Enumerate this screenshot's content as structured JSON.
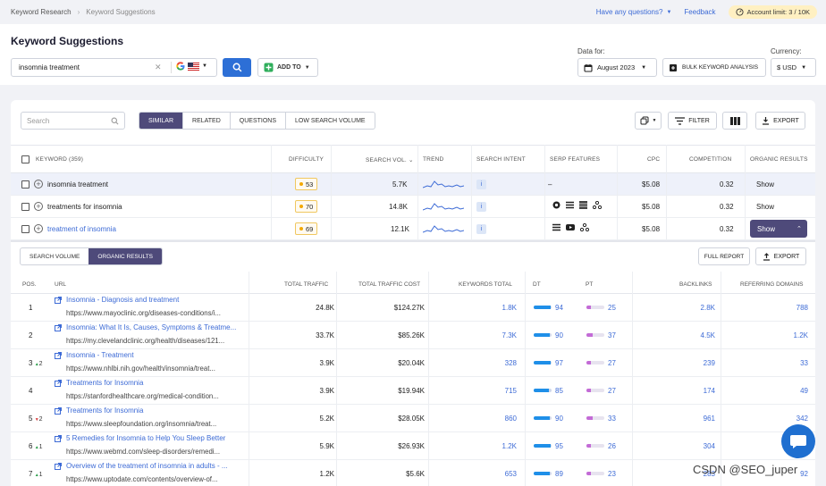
{
  "breadcrumb": {
    "root": "Keyword Research",
    "current": "Keyword Suggestions"
  },
  "topbar": {
    "questions": "Have any questions?",
    "feedback": "Feedback",
    "limit": "Account limit: 3 / 10K"
  },
  "page": {
    "title": "Keyword Suggestions"
  },
  "search": {
    "query": "insomnia treatment",
    "add_to": "ADD TO"
  },
  "data_for": {
    "label": "Data for:",
    "month": "August 2023",
    "bulk": "BULK KEYWORD ANALYSIS"
  },
  "currency": {
    "label": "Currency:",
    "value": "$ USD"
  },
  "filters": {
    "search_placeholder": "Search",
    "tabs": [
      "SIMILAR",
      "RELATED",
      "QUESTIONS",
      "LOW SEARCH VOLUME"
    ],
    "filter": "FILTER",
    "export": "EXPORT"
  },
  "kw_headers": {
    "keyword": "KEYWORD (359)",
    "difficulty": "DIFFICULTY",
    "volume": "SEARCH VOL.",
    "trend": "TREND",
    "intent": "SEARCH INTENT",
    "serp": "SERP FEATURES",
    "cpc": "CPC",
    "competition": "COMPETITION",
    "organic": "ORGANIC RESULTS"
  },
  "keywords": [
    {
      "keyword": "insomnia treatment",
      "difficulty": "53",
      "volume": "5.7K",
      "intent": "i",
      "serp": "–",
      "cpc": "$5.08",
      "competition": "0.32",
      "organic": "Show"
    },
    {
      "keyword": "treatments for insomnia",
      "difficulty": "70",
      "volume": "14.8K",
      "intent": "i",
      "serp": "",
      "cpc": "$5.08",
      "competition": "0.32",
      "organic": "Show"
    },
    {
      "keyword": "treatment of insomnia",
      "difficulty": "69",
      "volume": "12.1K",
      "intent": "i",
      "serp": "",
      "cpc": "$5.08",
      "competition": "0.32",
      "organic": "Show"
    }
  ],
  "sub_tabs": [
    "SEARCH VOLUME",
    "ORGANIC RESULTS"
  ],
  "full_report": "FULL REPORT",
  "sub_export": "EXPORT",
  "org_headers": {
    "pos": "POS.",
    "url": "URL",
    "traffic": "TOTAL TRAFFIC",
    "cost": "TOTAL TRAFFIC COST",
    "kw": "KEYWORDS TOTAL",
    "dt": "DT",
    "pt": "PT",
    "backlinks": "BACKLINKS",
    "domains": "REFERRING DOMAINS"
  },
  "organic": [
    {
      "pos": "1",
      "change": "",
      "dir": "",
      "title": "Insomnia - Diagnosis and treatment",
      "url": "https://www.mayoclinic.org/diseases-conditions/i...",
      "traffic": "24.8K",
      "cost": "$124.27K",
      "kw": "1.8K",
      "dt": "94",
      "pt": "25",
      "backlinks": "2.8K",
      "domains": "788"
    },
    {
      "pos": "2",
      "change": "",
      "dir": "",
      "title": "Insomnia: What It Is, Causes, Symptoms & Treatme...",
      "url": "https://my.clevelandclinic.org/health/diseases/121...",
      "traffic": "33.7K",
      "cost": "$85.26K",
      "kw": "7.3K",
      "dt": "90",
      "pt": "37",
      "backlinks": "4.5K",
      "domains": "1.2K"
    },
    {
      "pos": "3",
      "change": "2",
      "dir": "up",
      "title": "Insomnia - Treatment",
      "url": "https://www.nhlbi.nih.gov/health/insomnia/treat...",
      "traffic": "3.9K",
      "cost": "$20.04K",
      "kw": "328",
      "dt": "97",
      "pt": "27",
      "backlinks": "239",
      "domains": "33"
    },
    {
      "pos": "4",
      "change": "",
      "dir": "",
      "title": "Treatments for Insomnia",
      "url": "https://stanfordhealthcare.org/medical-condition...",
      "traffic": "3.9K",
      "cost": "$19.94K",
      "kw": "715",
      "dt": "85",
      "pt": "27",
      "backlinks": "174",
      "domains": "49"
    },
    {
      "pos": "5",
      "change": "2",
      "dir": "down",
      "title": "Treatments for Insomnia",
      "url": "https://www.sleepfoundation.org/insomnia/treat...",
      "traffic": "5.2K",
      "cost": "$28.05K",
      "kw": "860",
      "dt": "90",
      "pt": "33",
      "backlinks": "961",
      "domains": "342"
    },
    {
      "pos": "6",
      "change": "1",
      "dir": "up",
      "title": "5 Remedies for Insomnia to Help You Sleep Better",
      "url": "https://www.webmd.com/sleep-disorders/remedi...",
      "traffic": "5.9K",
      "cost": "$26.93K",
      "kw": "1.2K",
      "dt": "95",
      "pt": "26",
      "backlinks": "304",
      "domains": ""
    },
    {
      "pos": "7",
      "change": "1",
      "dir": "up",
      "title": "Overview of the treatment of insomnia in adults - ...",
      "url": "https://www.uptodate.com/contents/overview-of...",
      "traffic": "1.2K",
      "cost": "$5.6K",
      "kw": "653",
      "dt": "89",
      "pt": "23",
      "backlinks": "283",
      "domains": "92"
    }
  ],
  "watermark": "CSDN @SEO_juper",
  "colors": {
    "accent": "#2d6fd6",
    "seg_active": "#4e4a7a",
    "dt_bar": "#1f8fe8",
    "pt_bar": "#c36bd6",
    "up": "#2a9d4a",
    "down": "#d63a3a"
  }
}
